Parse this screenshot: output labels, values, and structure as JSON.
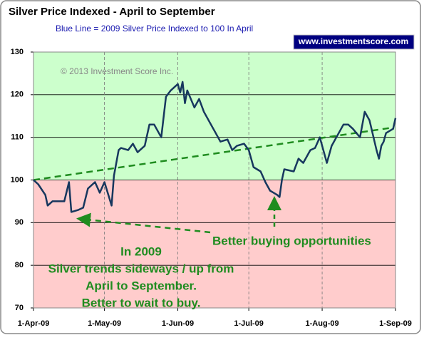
{
  "chart_data": {
    "type": "line",
    "title": "Silver Price Indexed - April to September",
    "subtitle": "Blue Line =  2009 Silver Price Indexed to 100 In April",
    "badge": "www.investmentscore.com",
    "copyright": "© 2013 Investment Score Inc.",
    "annotations": [
      "Better buying opportunities"
    ],
    "note_lines": [
      "In 2009",
      "Silver trends sideways / up from",
      "April to September.",
      "Better to wait to buy."
    ],
    "x": [
      "2009-04-01",
      "2009-04-03",
      "2009-04-06",
      "2009-04-07",
      "2009-04-09",
      "2009-04-14",
      "2009-04-16",
      "2009-04-17",
      "2009-04-20",
      "2009-04-22",
      "2009-04-24",
      "2009-04-27",
      "2009-04-29",
      "2009-05-01",
      "2009-05-04",
      "2009-05-05",
      "2009-05-07",
      "2009-05-08",
      "2009-05-11",
      "2009-05-13",
      "2009-05-15",
      "2009-05-18",
      "2009-05-20",
      "2009-05-22",
      "2009-05-25",
      "2009-05-27",
      "2009-05-29",
      "2009-06-01",
      "2009-06-02",
      "2009-06-03",
      "2009-06-04",
      "2009-06-05",
      "2009-06-08",
      "2009-06-10",
      "2009-06-12",
      "2009-06-15",
      "2009-06-17",
      "2009-06-19",
      "2009-06-22",
      "2009-06-24",
      "2009-06-26",
      "2009-06-29",
      "2009-07-01",
      "2009-07-03",
      "2009-07-06",
      "2009-07-08",
      "2009-07-10",
      "2009-07-13",
      "2009-07-14",
      "2009-07-15",
      "2009-07-16",
      "2009-07-20",
      "2009-07-22",
      "2009-07-24",
      "2009-07-27",
      "2009-07-29",
      "2009-07-31",
      "2009-08-03",
      "2009-08-05",
      "2009-08-07",
      "2009-08-10",
      "2009-08-12",
      "2009-08-14",
      "2009-08-17",
      "2009-08-19",
      "2009-08-21",
      "2009-08-24",
      "2009-08-25",
      "2009-08-26",
      "2009-08-27",
      "2009-08-28",
      "2009-08-31",
      "2009-09-01"
    ],
    "series": [
      {
        "color": "#17375e",
        "values": [
          100,
          99,
          96.5,
          94,
          95,
          95,
          99.5,
          92.5,
          93,
          93.5,
          98,
          99.5,
          97,
          99.5,
          94,
          101,
          107,
          107.5,
          107,
          108.5,
          106.5,
          108,
          113,
          113,
          110,
          119.5,
          121,
          122.5,
          120.5,
          123,
          118,
          121,
          117,
          119,
          116,
          113,
          111,
          109,
          109.5,
          107,
          108,
          108.5,
          107,
          103,
          102,
          99.5,
          97.5,
          96.5,
          96,
          100,
          102.5,
          102,
          105,
          104,
          107,
          107.5,
          110,
          104,
          108,
          110,
          113,
          113,
          112,
          110,
          116,
          114,
          107,
          105,
          108,
          109,
          111,
          112,
          114.5
        ]
      }
    ],
    "trend_line": {
      "color": "#1f8c1f",
      "x": [
        "2009-04-01",
        "2009-08-31"
      ],
      "values": [
        100,
        112.3
      ]
    },
    "shading": {
      "at": 100,
      "above": "#ccffcc",
      "below": "#ffcccc"
    },
    "xlim": [
      "2009-04-01",
      "2009-09-01"
    ],
    "xticks": [
      {
        "value": "2009-04-01",
        "label": "1-Apr-09"
      },
      {
        "value": "2009-05-01",
        "label": "1-May-09"
      },
      {
        "value": "2009-06-01",
        "label": "1-Jun-09"
      },
      {
        "value": "2009-07-01",
        "label": "1-Jul-09"
      },
      {
        "value": "2009-08-01",
        "label": "1-Aug-09"
      },
      {
        "value": "2009-09-01",
        "label": "1-Sep-09"
      }
    ],
    "ylim": [
      70,
      130
    ],
    "yticks": [
      70,
      80,
      90,
      100,
      110,
      120,
      130
    ],
    "grid": true
  }
}
